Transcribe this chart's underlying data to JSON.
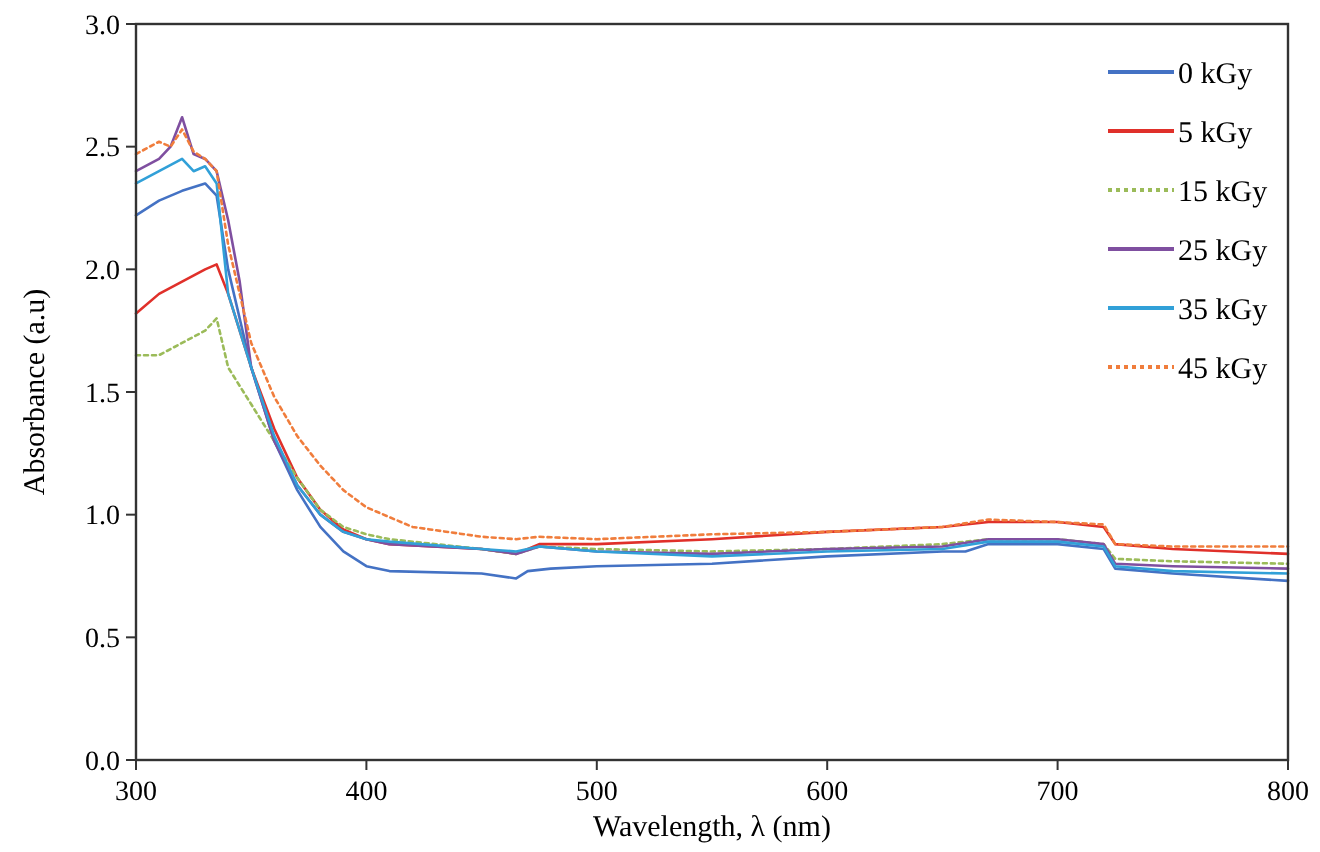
{
  "chart_data": {
    "type": "line",
    "xlabel": "Wavelength, λ (nm)",
    "ylabel": "Absorbance (a.u)",
    "xlim": [
      300,
      800
    ],
    "ylim": [
      0,
      3
    ],
    "xticks": [
      300,
      400,
      500,
      600,
      700,
      800
    ],
    "yticks": [
      {
        "value": 0,
        "label": "0.0"
      },
      {
        "value": 0.5,
        "label": "0.5"
      },
      {
        "value": 1,
        "label": "1.0"
      },
      {
        "value": 1.5,
        "label": "1.5"
      },
      {
        "value": 2,
        "label": "2.0"
      },
      {
        "value": 2.5,
        "label": "2.5"
      },
      {
        "value": 3,
        "label": "3.0"
      }
    ],
    "grid": false,
    "legend": "top right",
    "series": [
      {
        "name": "0 kGy",
        "color": "#4472c4",
        "line_style": "solid",
        "x": [
          300,
          310,
          320,
          330,
          335,
          340,
          350,
          360,
          370,
          380,
          390,
          400,
          410,
          450,
          465,
          470,
          480,
          500,
          550,
          600,
          650,
          660,
          670,
          700,
          720,
          725,
          750,
          800
        ],
        "values": [
          2.22,
          2.28,
          2.32,
          2.35,
          2.3,
          2.0,
          1.6,
          1.3,
          1.1,
          0.95,
          0.85,
          0.79,
          0.77,
          0.76,
          0.74,
          0.77,
          0.78,
          0.79,
          0.8,
          0.83,
          0.85,
          0.85,
          0.88,
          0.88,
          0.86,
          0.78,
          0.76,
          0.73
        ]
      },
      {
        "name": "5 kGy",
        "color": "#e0302a",
        "line_style": "solid",
        "x": [
          300,
          310,
          320,
          330,
          335,
          340,
          350,
          360,
          370,
          380,
          390,
          400,
          410,
          450,
          465,
          475,
          500,
          550,
          600,
          650,
          670,
          700,
          720,
          725,
          750,
          800
        ],
        "values": [
          1.82,
          1.9,
          1.95,
          2.0,
          2.02,
          1.9,
          1.6,
          1.35,
          1.15,
          1.02,
          0.94,
          0.9,
          0.88,
          0.86,
          0.84,
          0.88,
          0.88,
          0.9,
          0.93,
          0.95,
          0.97,
          0.97,
          0.95,
          0.88,
          0.86,
          0.84
        ]
      },
      {
        "name": "15 kGy",
        "color": "#9bbb59",
        "line_style": "dotted",
        "x": [
          300,
          310,
          320,
          330,
          335,
          340,
          350,
          360,
          370,
          380,
          390,
          400,
          410,
          450,
          465,
          475,
          500,
          550,
          600,
          650,
          670,
          700,
          720,
          725,
          750,
          800
        ],
        "values": [
          1.65,
          1.65,
          1.7,
          1.75,
          1.8,
          1.6,
          1.45,
          1.3,
          1.15,
          1.02,
          0.95,
          0.92,
          0.9,
          0.86,
          0.84,
          0.87,
          0.86,
          0.85,
          0.86,
          0.88,
          0.9,
          0.9,
          0.88,
          0.82,
          0.81,
          0.8
        ]
      },
      {
        "name": "25 kGy",
        "color": "#7f4fa0",
        "line_style": "solid",
        "x": [
          300,
          310,
          315,
          320,
          325,
          330,
          335,
          340,
          345,
          350,
          360,
          370,
          380,
          390,
          400,
          410,
          450,
          465,
          475,
          500,
          550,
          600,
          650,
          670,
          700,
          720,
          725,
          750,
          800
        ],
        "values": [
          2.4,
          2.45,
          2.5,
          2.62,
          2.47,
          2.45,
          2.4,
          2.2,
          1.95,
          1.6,
          1.3,
          1.12,
          1.0,
          0.93,
          0.9,
          0.88,
          0.86,
          0.84,
          0.87,
          0.85,
          0.84,
          0.86,
          0.87,
          0.9,
          0.9,
          0.88,
          0.8,
          0.79,
          0.78
        ]
      },
      {
        "name": "35 kGy",
        "color": "#31a0d8",
        "line_style": "solid",
        "x": [
          300,
          310,
          320,
          325,
          330,
          335,
          340,
          350,
          360,
          370,
          380,
          390,
          400,
          410,
          450,
          465,
          475,
          500,
          550,
          600,
          650,
          670,
          700,
          720,
          725,
          750,
          800
        ],
        "values": [
          2.35,
          2.4,
          2.45,
          2.4,
          2.42,
          2.35,
          1.9,
          1.6,
          1.32,
          1.12,
          1.0,
          0.93,
          0.9,
          0.89,
          0.86,
          0.85,
          0.87,
          0.85,
          0.83,
          0.85,
          0.86,
          0.89,
          0.89,
          0.87,
          0.79,
          0.77,
          0.76
        ]
      },
      {
        "name": "45 kGy",
        "color": "#f07d3c",
        "line_style": "dotted",
        "x": [
          300,
          310,
          315,
          320,
          325,
          330,
          335,
          340,
          350,
          360,
          370,
          380,
          390,
          400,
          410,
          420,
          450,
          465,
          475,
          500,
          550,
          600,
          650,
          670,
          700,
          720,
          725,
          750,
          800
        ],
        "values": [
          2.47,
          2.52,
          2.5,
          2.57,
          2.48,
          2.45,
          2.4,
          2.1,
          1.7,
          1.48,
          1.32,
          1.2,
          1.1,
          1.03,
          0.99,
          0.95,
          0.91,
          0.9,
          0.91,
          0.9,
          0.92,
          0.93,
          0.95,
          0.98,
          0.97,
          0.96,
          0.88,
          0.87,
          0.87
        ]
      }
    ]
  }
}
